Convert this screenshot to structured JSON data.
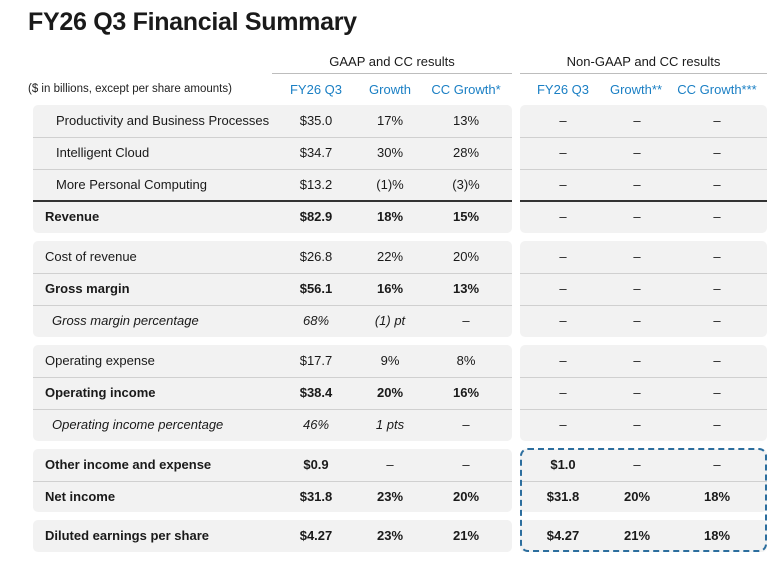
{
  "title": "FY26 Q3 Financial Summary",
  "note": "($ in billions, except per share amounts)",
  "groups": {
    "gaap": "GAAP and CC results",
    "nongaap": "Non-GAAP and CC results"
  },
  "columns": {
    "gaap_q": "FY26 Q3",
    "gaap_growth": "Growth",
    "gaap_cc": "CC Growth*",
    "ng_q": "FY26 Q3",
    "ng_growth": "Growth**",
    "ng_cc": "CC Growth***"
  },
  "rows": [
    {
      "label": "Productivity and Business Processes",
      "q": "$35.0",
      "g": "17%",
      "cc": "13%",
      "nq": "–",
      "ng": "–",
      "ncc": "–"
    },
    {
      "label": "Intelligent Cloud",
      "q": "$34.7",
      "g": "30%",
      "cc": "28%",
      "nq": "–",
      "ng": "–",
      "ncc": "–"
    },
    {
      "label": "More Personal Computing",
      "q": "$13.2",
      "g": "(1)%",
      "cc": "(3)%",
      "nq": "–",
      "ng": "–",
      "ncc": "–"
    },
    {
      "label": "Revenue",
      "q": "$82.9",
      "g": "18%",
      "cc": "15%",
      "nq": "–",
      "ng": "–",
      "ncc": "–"
    },
    {
      "label": "Cost of revenue",
      "q": "$26.8",
      "g": "22%",
      "cc": "20%",
      "nq": "–",
      "ng": "–",
      "ncc": "–"
    },
    {
      "label": "Gross margin",
      "q": "$56.1",
      "g": "16%",
      "cc": "13%",
      "nq": "–",
      "ng": "–",
      "ncc": "–"
    },
    {
      "label": "Gross margin percentage",
      "q": "68%",
      "g": "(1) pt",
      "cc": "–",
      "nq": "–",
      "ng": "–",
      "ncc": "–"
    },
    {
      "label": "Operating expense",
      "q": "$17.7",
      "g": "9%",
      "cc": "8%",
      "nq": "–",
      "ng": "–",
      "ncc": "–"
    },
    {
      "label": "Operating income",
      "q": "$38.4",
      "g": "20%",
      "cc": "16%",
      "nq": "–",
      "ng": "–",
      "ncc": "–"
    },
    {
      "label": "Operating income percentage",
      "q": "46%",
      "g": "1 pts",
      "cc": "–",
      "nq": "–",
      "ng": "–",
      "ncc": "–"
    },
    {
      "label": "Other income and expense",
      "q": "$0.9",
      "g": "–",
      "cc": "–",
      "nq": "$1.0",
      "ng": "–",
      "ncc": "–"
    },
    {
      "label": "Net income",
      "q": "$31.8",
      "g": "23%",
      "cc": "20%",
      "nq": "$31.8",
      "ng": "20%",
      "ncc": "18%"
    },
    {
      "label": "Diluted earnings per share",
      "q": "$4.27",
      "g": "23%",
      "cc": "21%",
      "nq": "$4.27",
      "ng": "21%",
      "ncc": "18%"
    }
  ]
}
